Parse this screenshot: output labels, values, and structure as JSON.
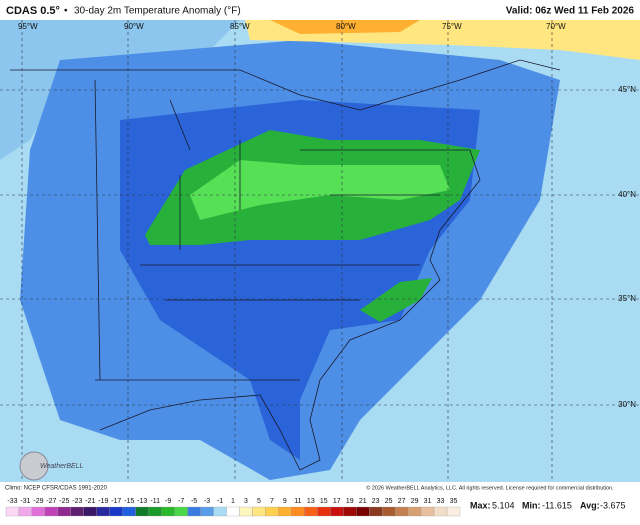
{
  "header": {
    "title": "CDAS 0.5°",
    "separator": "•",
    "subtitle": "30-day 2m Temperature Anomaly (°F)",
    "valid": "Valid: 06z Wed 11 Feb 2026"
  },
  "map": {
    "lon_labels": [
      "95°W",
      "90°W",
      "85°W",
      "80°W",
      "75°W",
      "70°W"
    ],
    "lat_labels": [
      "45°N",
      "40°N",
      "35°N",
      "30°N"
    ]
  },
  "footer": {
    "climo": "Climo: NCEP CFSR/CDAS 1991-2020",
    "logo": "WeatherBELL",
    "copyright": "© 2026 WeatherBELL Analytics, LLC. All rights reserved. License required for commercial distribution."
  },
  "stats": {
    "max_label": "Max:",
    "max": 5.104,
    "min_label": "Min:",
    "min": -11.615,
    "avg_label": "Avg:",
    "avg": -3.675
  },
  "colorbar": {
    "ticks": [
      -33,
      -31,
      -29,
      -27,
      -25,
      -23,
      -21,
      -19,
      -17,
      -15,
      -13,
      -11,
      -9,
      -7,
      -5,
      -3,
      -1,
      1,
      3,
      5,
      7,
      9,
      11,
      13,
      15,
      17,
      19,
      21,
      23,
      25,
      27,
      29,
      31,
      33,
      35
    ],
    "colors": [
      "#fbd7f5",
      "#f0a8ea",
      "#e070d8",
      "#c040b8",
      "#902a90",
      "#602070",
      "#3a1868",
      "#2a2aa0",
      "#1838c8",
      "#1f5fe0",
      "#0f7a2a",
      "#1a9a2a",
      "#2cb82c",
      "#4ad84a",
      "#3a7be0",
      "#5a9de8",
      "#a8dcf4",
      "#ffffff",
      "#fff6c0",
      "#ffe680",
      "#ffd050",
      "#ffb030",
      "#ff8c20",
      "#f86018",
      "#e83010",
      "#c81010",
      "#a00808",
      "#780000",
      "#8a3a20",
      "#a85c30",
      "#c48050",
      "#d8a070",
      "#e8c0a0",
      "#f3ddc8",
      "#fbeee0"
    ]
  }
}
